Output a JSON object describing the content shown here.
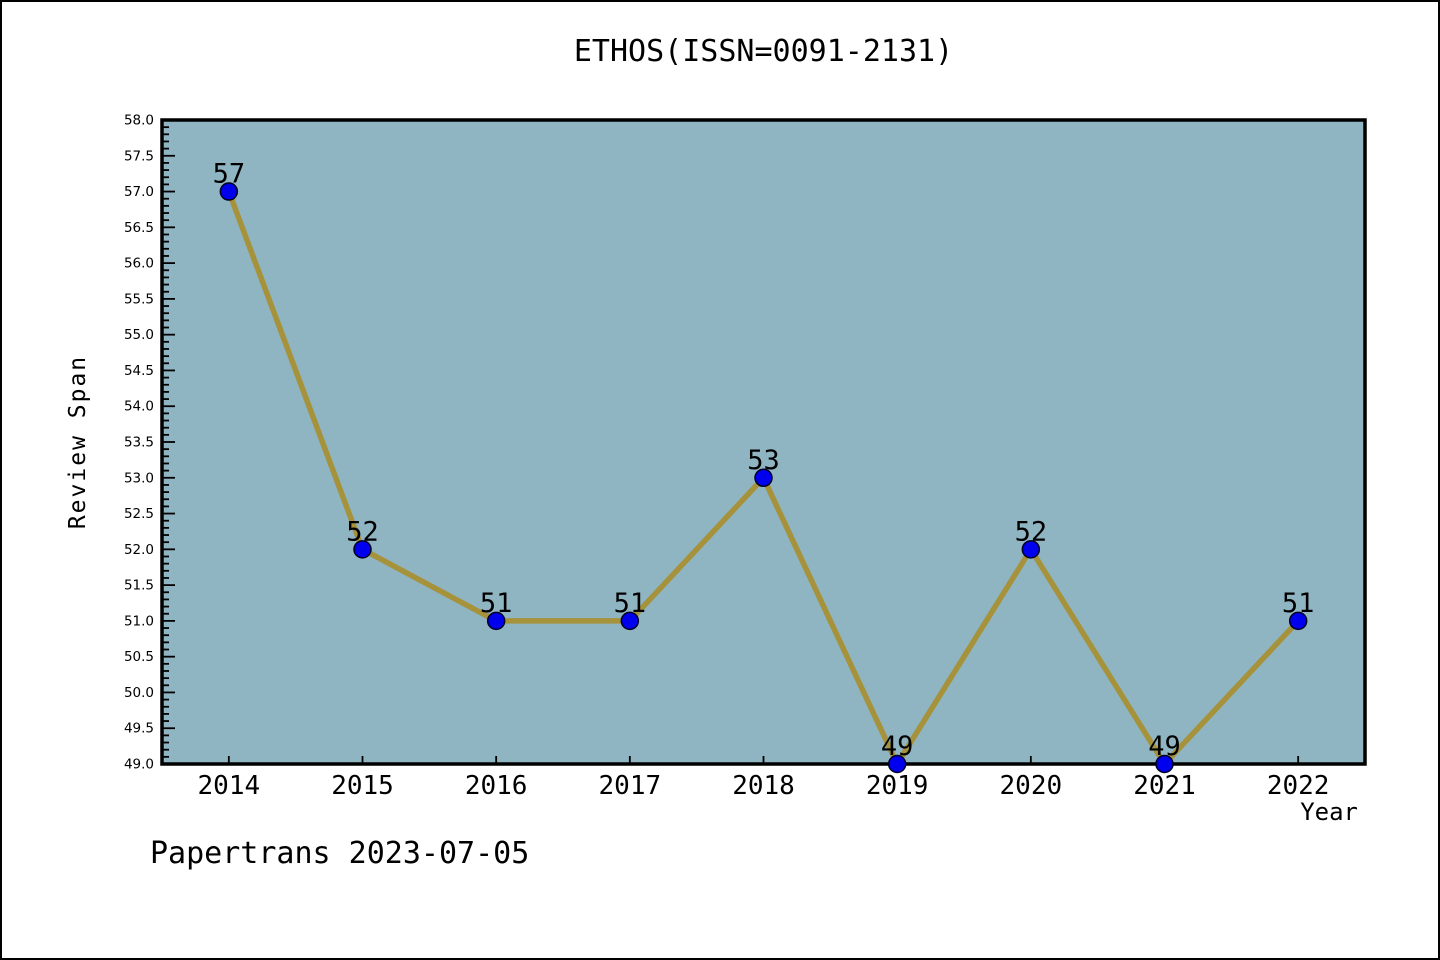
{
  "chart_data": {
    "type": "line",
    "title": "ETHOS(ISSN=0091-2131)",
    "xlabel": "Year",
    "ylabel": "Review Span",
    "categories": [
      "2014",
      "2015",
      "2016",
      "2017",
      "2018",
      "2019",
      "2020",
      "2021",
      "2022"
    ],
    "values": [
      57,
      52,
      51,
      51,
      53,
      49,
      52,
      49,
      51
    ],
    "point_labels": [
      "57",
      "52",
      "51",
      "51",
      "53",
      "49",
      "52",
      "49",
      "51"
    ],
    "ylim": [
      49.0,
      58.0
    ],
    "y_major_tick_step": 0.5,
    "y_minor_tick_step": 0.1,
    "y_tick_labels": [
      "49.0",
      "49.5",
      "50.0",
      "50.5",
      "51.0",
      "51.5",
      "52.0",
      "52.5",
      "53.0",
      "53.5",
      "54.0",
      "54.5",
      "55.0",
      "55.5",
      "56.0",
      "56.5",
      "57.0",
      "57.5",
      "58.0"
    ],
    "grid": "off",
    "legend": "none",
    "colors": {
      "plot_background": "#8FB5C3",
      "line": "#A6923B",
      "marker_fill": "#0000EE",
      "marker_edge": "#000022",
      "axis": "#000000",
      "text": "#000000",
      "figure_background": "#FFFFFF"
    }
  },
  "footer": {
    "caption": "Papertrans 2023-07-05"
  }
}
